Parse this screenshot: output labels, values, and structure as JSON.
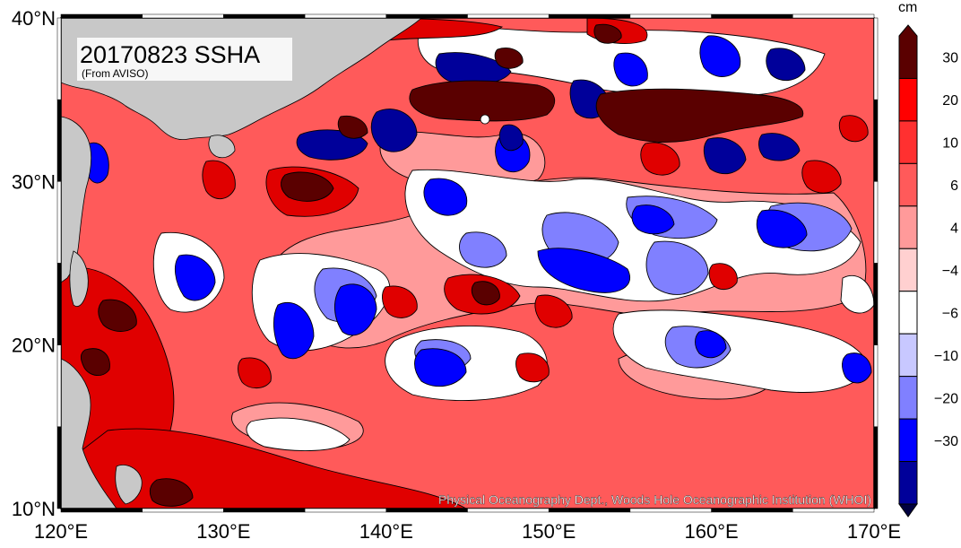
{
  "title": "20170823 SSHA",
  "source": "(From AVISO)",
  "credit": "Physical Oceanography Dept., Woods Hole Oceanographic Institution (WHOI)",
  "colorbar": {
    "unit": "cm",
    "levels": [
      {
        "label": "30",
        "color": "#ff0000"
      },
      {
        "label": "20",
        "color": "#ff3030"
      },
      {
        "label": "10",
        "color": "#ff5a5a"
      },
      {
        "label": "6",
        "color": "#ff9a9a"
      },
      {
        "label": "4",
        "color": "#ffd0d0"
      },
      {
        "label": "−4",
        "color": "#ffffff"
      },
      {
        "label": "−6",
        "color": "#c8c8ff"
      },
      {
        "label": "−10",
        "color": "#8080ff"
      },
      {
        "label": "−20",
        "color": "#0000ff"
      },
      {
        "label": "−30",
        "color": "#00009a"
      }
    ],
    "top_color": "#5a0000",
    "bottom_color": "#000040"
  },
  "axes": {
    "lon_labels": [
      "120°E",
      "130°E",
      "140°E",
      "150°E",
      "160°E",
      "170°E"
    ],
    "lat_labels": [
      "40°N",
      "30°N",
      "20°N",
      "10°N"
    ]
  },
  "colors": {
    "ocean_base": "#ff5a5a",
    "land": "#c8c8c8",
    "dark_red": "#5a0000",
    "red": "#e00000",
    "light_red": "#ff9a9a",
    "white": "#ffffff",
    "light_blue": "#8080ff",
    "blue": "#0000ff",
    "dark_blue": "#00009a"
  }
}
